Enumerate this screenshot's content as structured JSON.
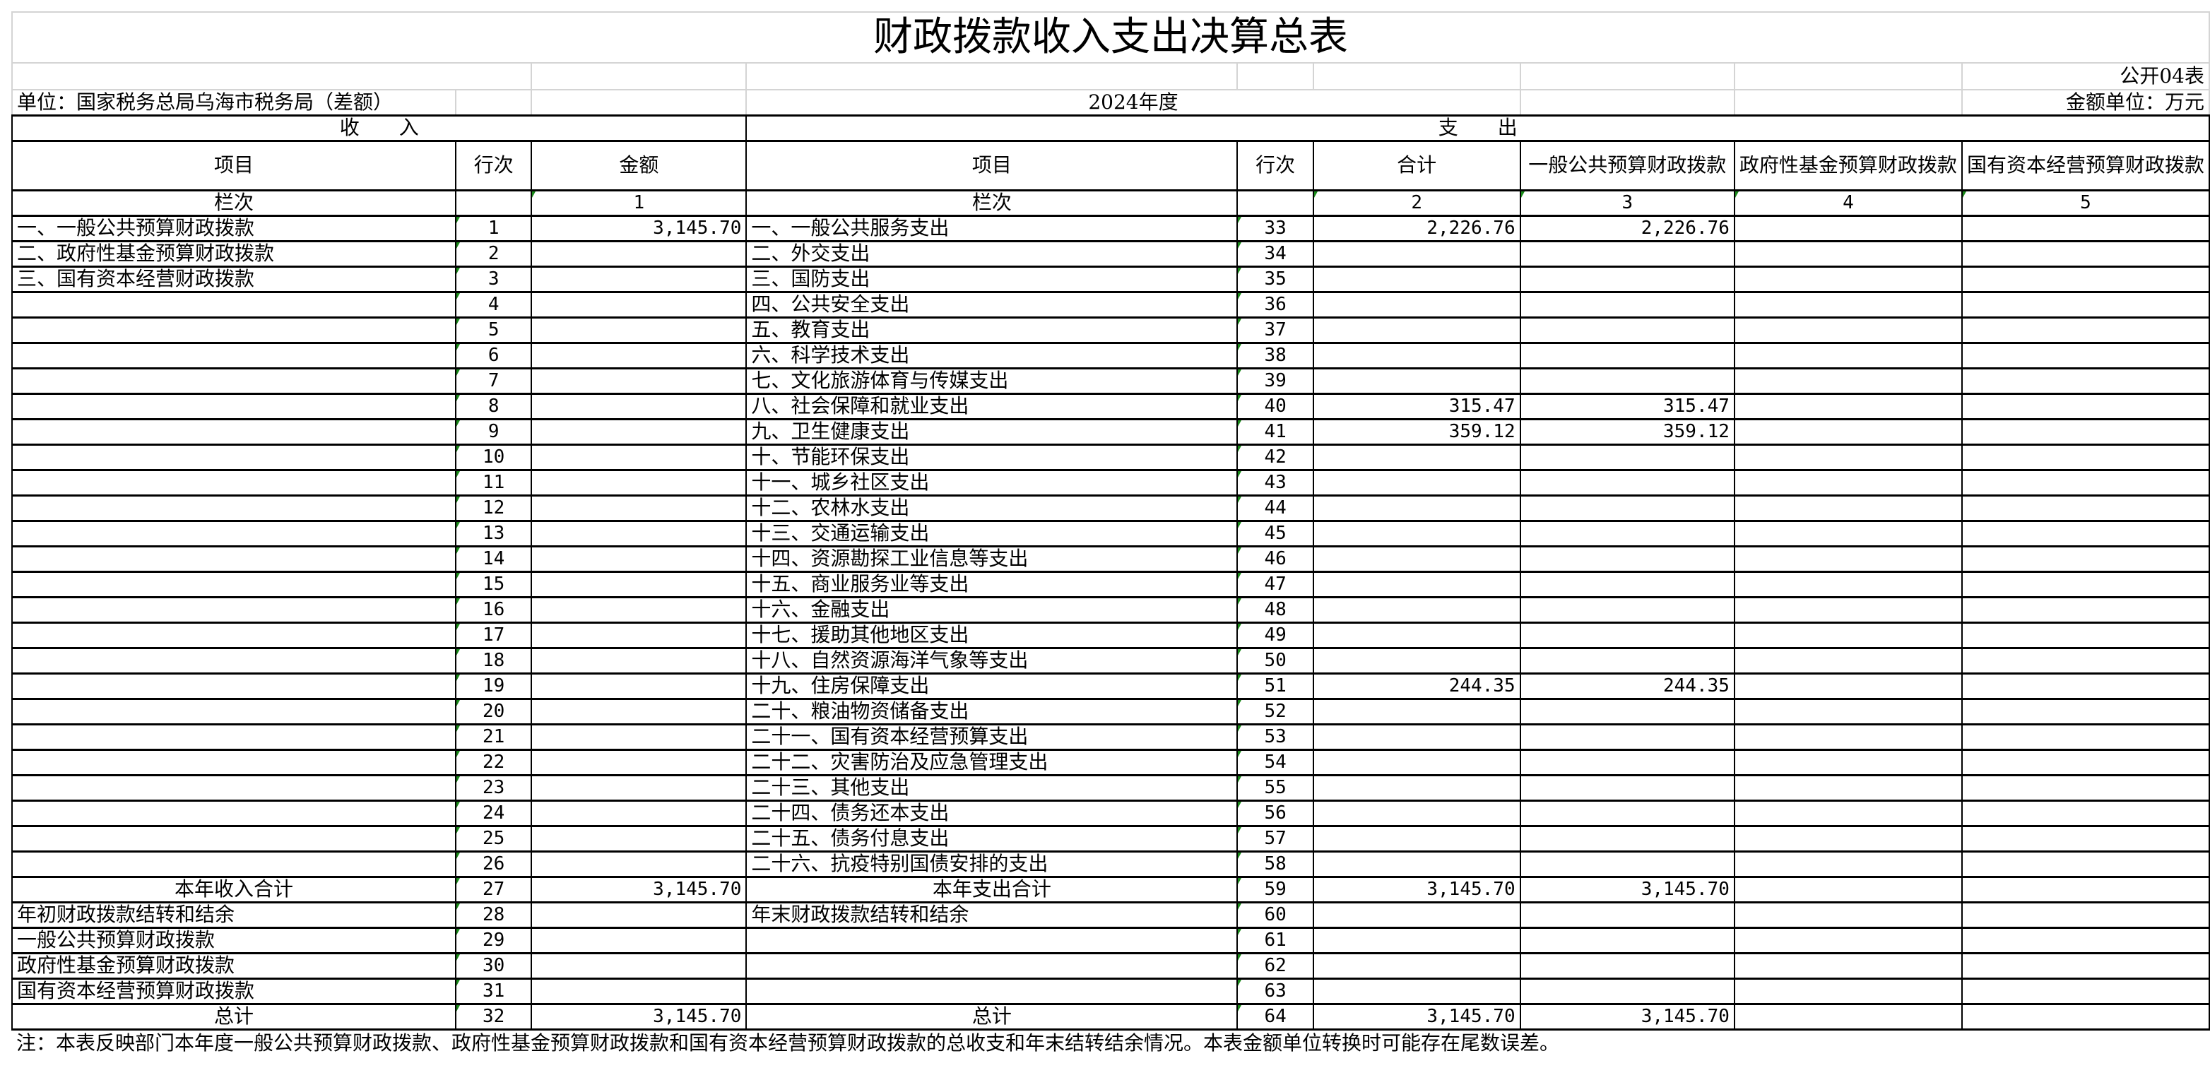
{
  "title": "财政拨款收入支出决算总表",
  "table_code": "公开04表",
  "unit": "单位：国家税务总局乌海市税务局（差额）",
  "year": "2024年度",
  "currency_unit": "金额单位：万元",
  "income_header": "收　　入",
  "expense_header": "支　　出",
  "columns": {
    "income_item": "项目",
    "income_line": "行次",
    "income_amount": "金额",
    "expense_item": "项目",
    "expense_line": "行次",
    "total": "合计",
    "general": "一般公共预算财政拨款",
    "gov_fund": "政府性基金预算财政拨款",
    "state_capital": "国有资本经营预算财政拨款"
  },
  "column_numbers": {
    "label": "栏次",
    "income_amount": "1",
    "total": "2",
    "general": "3",
    "gov_fund": "4",
    "state_capital": "5"
  },
  "rows": [
    {
      "income_item": "一、一般公共预算财政拨款",
      "income_line": "1",
      "income_amount": "3,145.70",
      "expense_item": "一、一般公共服务支出",
      "expense_line": "33",
      "total": "2,226.76",
      "general": "2,226.76"
    },
    {
      "income_item": "二、政府性基金预算财政拨款",
      "income_line": "2",
      "expense_item": "二、外交支出",
      "expense_line": "34"
    },
    {
      "income_item": "三、国有资本经营财政拨款",
      "income_line": "3",
      "expense_item": "三、国防支出",
      "expense_line": "35"
    },
    {
      "income_line": "4",
      "expense_item": "四、公共安全支出",
      "expense_line": "36"
    },
    {
      "income_line": "5",
      "expense_item": "五、教育支出",
      "expense_line": "37"
    },
    {
      "income_line": "6",
      "expense_item": "六、科学技术支出",
      "expense_line": "38"
    },
    {
      "income_line": "7",
      "expense_item": "七、文化旅游体育与传媒支出",
      "expense_line": "39"
    },
    {
      "income_line": "8",
      "expense_item": "八、社会保障和就业支出",
      "expense_line": "40",
      "total": "315.47",
      "general": "315.47"
    },
    {
      "income_line": "9",
      "expense_item": "九、卫生健康支出",
      "expense_line": "41",
      "total": "359.12",
      "general": "359.12"
    },
    {
      "income_line": "10",
      "expense_item": "十、节能环保支出",
      "expense_line": "42"
    },
    {
      "income_line": "11",
      "expense_item": "十一、城乡社区支出",
      "expense_line": "43"
    },
    {
      "income_line": "12",
      "expense_item": "十二、农林水支出",
      "expense_line": "44"
    },
    {
      "income_line": "13",
      "expense_item": "十三、交通运输支出",
      "expense_line": "45"
    },
    {
      "income_line": "14",
      "expense_item": "十四、资源勘探工业信息等支出",
      "expense_line": "46"
    },
    {
      "income_line": "15",
      "expense_item": "十五、商业服务业等支出",
      "expense_line": "47"
    },
    {
      "income_line": "16",
      "expense_item": "十六、金融支出",
      "expense_line": "48"
    },
    {
      "income_line": "17",
      "expense_item": "十七、援助其他地区支出",
      "expense_line": "49"
    },
    {
      "income_line": "18",
      "expense_item": "十八、自然资源海洋气象等支出",
      "expense_line": "50"
    },
    {
      "income_line": "19",
      "expense_item": "十九、住房保障支出",
      "expense_line": "51",
      "total": "244.35",
      "general": "244.35"
    },
    {
      "income_line": "20",
      "expense_item": "二十、粮油物资储备支出",
      "expense_line": "52"
    },
    {
      "income_line": "21",
      "expense_item": "二十一、国有资本经营预算支出",
      "expense_line": "53"
    },
    {
      "income_line": "22",
      "expense_item": "二十二、灾害防治及应急管理支出",
      "expense_line": "54"
    },
    {
      "income_line": "23",
      "expense_item": "二十三、其他支出",
      "expense_line": "55"
    },
    {
      "income_line": "24",
      "expense_item": "二十四、债务还本支出",
      "expense_line": "56"
    },
    {
      "income_line": "25",
      "expense_item": "二十五、债务付息支出",
      "expense_line": "57"
    },
    {
      "income_line": "26",
      "expense_item": "二十六、抗疫特别国债安排的支出",
      "expense_line": "58"
    },
    {
      "income_item": "本年收入合计",
      "income_center": true,
      "income_line": "27",
      "income_amount": "3,145.70",
      "expense_item": "本年支出合计",
      "expense_center": true,
      "expense_line": "59",
      "total": "3,145.70",
      "general": "3,145.70"
    },
    {
      "income_item": "年初财政拨款结转和结余",
      "income_line": "28",
      "expense_item": "年末财政拨款结转和结余",
      "expense_line": "60"
    },
    {
      "income_item": "一般公共预算财政拨款",
      "income_line": "29",
      "expense_line": "61"
    },
    {
      "income_item": "政府性基金预算财政拨款",
      "income_line": "30",
      "expense_line": "62"
    },
    {
      "income_item": "国有资本经营预算财政拨款",
      "income_line": "31",
      "expense_line": "63"
    },
    {
      "income_item": "总计",
      "income_center": true,
      "income_line": "32",
      "income_amount": "3,145.70",
      "expense_item": "总计",
      "expense_center": true,
      "expense_line": "64",
      "total": "3,145.70",
      "general": "3,145.70"
    }
  ],
  "note": "注：本表反映部门本年度一般公共预算财政拨款、政府性基金预算财政拨款和国有资本经营预算财政拨款的总收支和年末结转结余情况。本表金额单位转换时可能存在尾数误差。"
}
